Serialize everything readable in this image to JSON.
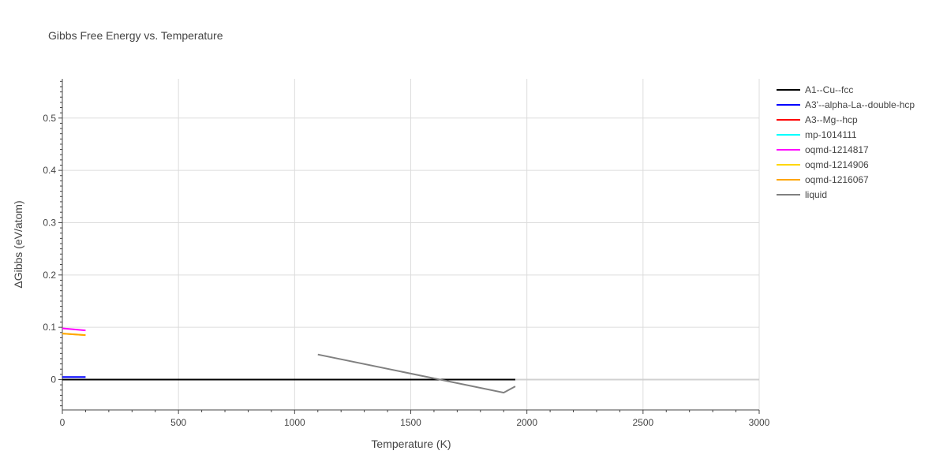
{
  "chart_data": {
    "type": "line",
    "title": "Gibbs Free Energy vs. Temperature",
    "xlabel": "Temperature (K)",
    "ylabel": "ΔGibbs (eV/atom)",
    "xlim": [
      0,
      3000
    ],
    "ylim": [
      -0.058,
      0.575
    ],
    "x_ticks": [
      0,
      500,
      1000,
      1500,
      2000,
      2500,
      3000
    ],
    "x_tick_labels": [
      "0",
      "500",
      "1000",
      "1500",
      "2000",
      "2500",
      "3000"
    ],
    "y_ticks": [
      0,
      0.1,
      0.2,
      0.3,
      0.4,
      0.5
    ],
    "y_tick_labels": [
      "0",
      "0.1",
      "0.2",
      "0.3",
      "0.4",
      "0.5"
    ],
    "grid": true,
    "legend_position": "top-right",
    "series": [
      {
        "name": "A1--Cu--fcc",
        "color": "#000000",
        "x": [
          0,
          1950
        ],
        "y": [
          0,
          0
        ]
      },
      {
        "name": "A3'--alpha-La--double-hcp",
        "color": "#0000ff",
        "x": [
          0,
          100
        ],
        "y": [
          0.005,
          0.005
        ]
      },
      {
        "name": "A3--Mg--hcp",
        "color": "#ff0000",
        "x": [],
        "y": []
      },
      {
        "name": "mp-1014111",
        "color": "#00ffff",
        "x": [],
        "y": []
      },
      {
        "name": "oqmd-1214817",
        "color": "#ff00ff",
        "x": [
          0,
          100
        ],
        "y": [
          0.098,
          0.094
        ]
      },
      {
        "name": "oqmd-1214906",
        "color": "#ffd700",
        "x": [
          0,
          100
        ],
        "y": [
          0.088,
          0.085
        ]
      },
      {
        "name": "oqmd-1216067",
        "color": "#ffa500",
        "x": [
          0,
          100
        ],
        "y": [
          0.088,
          0.085
        ]
      },
      {
        "name": "liquid",
        "color": "#808080",
        "x": [
          1100,
          1900,
          1950
        ],
        "y": [
          0.048,
          -0.025,
          -0.013
        ]
      }
    ]
  }
}
